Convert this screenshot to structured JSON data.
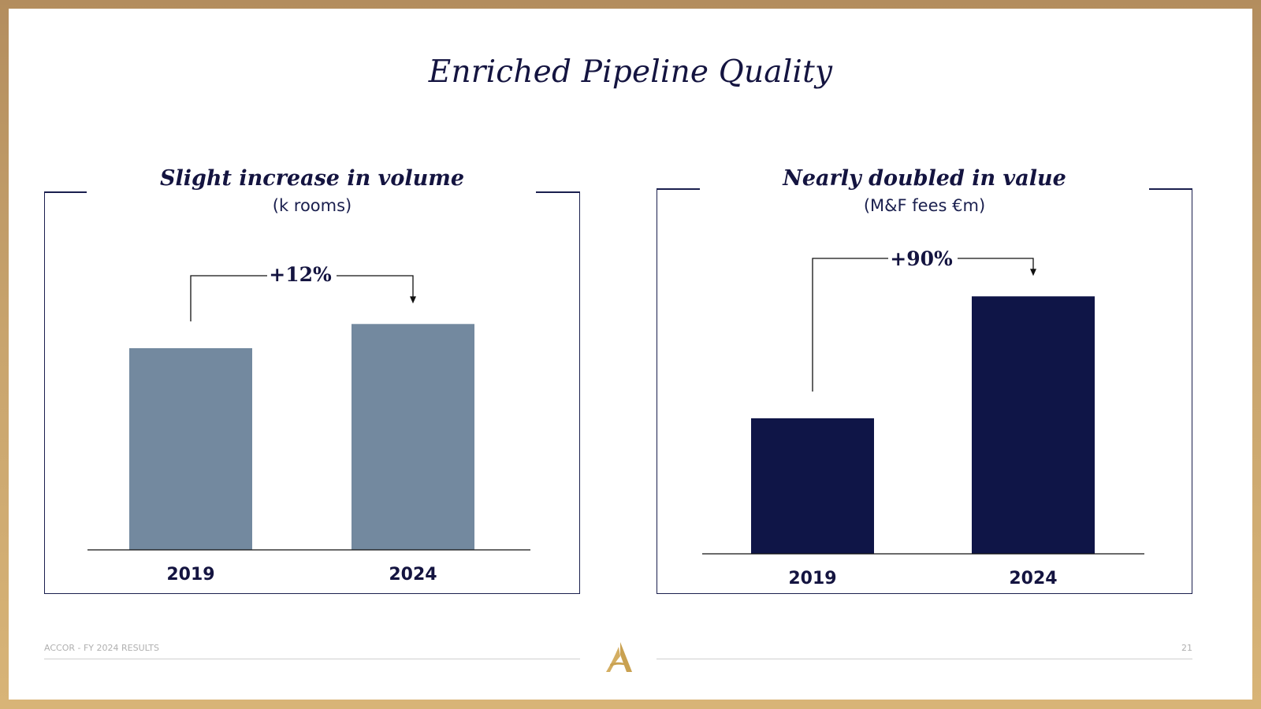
{
  "slide": {
    "title": "Enriched Pipeline Quality"
  },
  "colors": {
    "volume_bar": "#73899f",
    "value_bar": "#0f1547",
    "text": "#141440",
    "gold": "#c9a150"
  },
  "panels": [
    {
      "title": "Slight increase in volume",
      "subtitle": "(k rooms)",
      "change_label": "+12%"
    },
    {
      "title": "Nearly doubled in value",
      "subtitle": "(M&F fees €m)",
      "change_label": "+90%"
    }
  ],
  "chart_data": [
    {
      "type": "bar",
      "title": "Slight increase in volume",
      "subtitle": "(k rooms)",
      "categories": [
        "2019",
        "2024"
      ],
      "values": [
        100,
        112
      ],
      "annotation": "+12%",
      "ylim": [
        0,
        120
      ]
    },
    {
      "type": "bar",
      "title": "Nearly doubled in value",
      "subtitle": "(M&F fees €m)",
      "categories": [
        "2019",
        "2024"
      ],
      "values": [
        100,
        190
      ],
      "annotation": "+90%",
      "ylim": [
        0,
        200
      ]
    }
  ],
  "footer": {
    "left_text": "ACCOR - FY 2024 RESULTS",
    "page_number": "21",
    "logo_glyph": "A"
  }
}
